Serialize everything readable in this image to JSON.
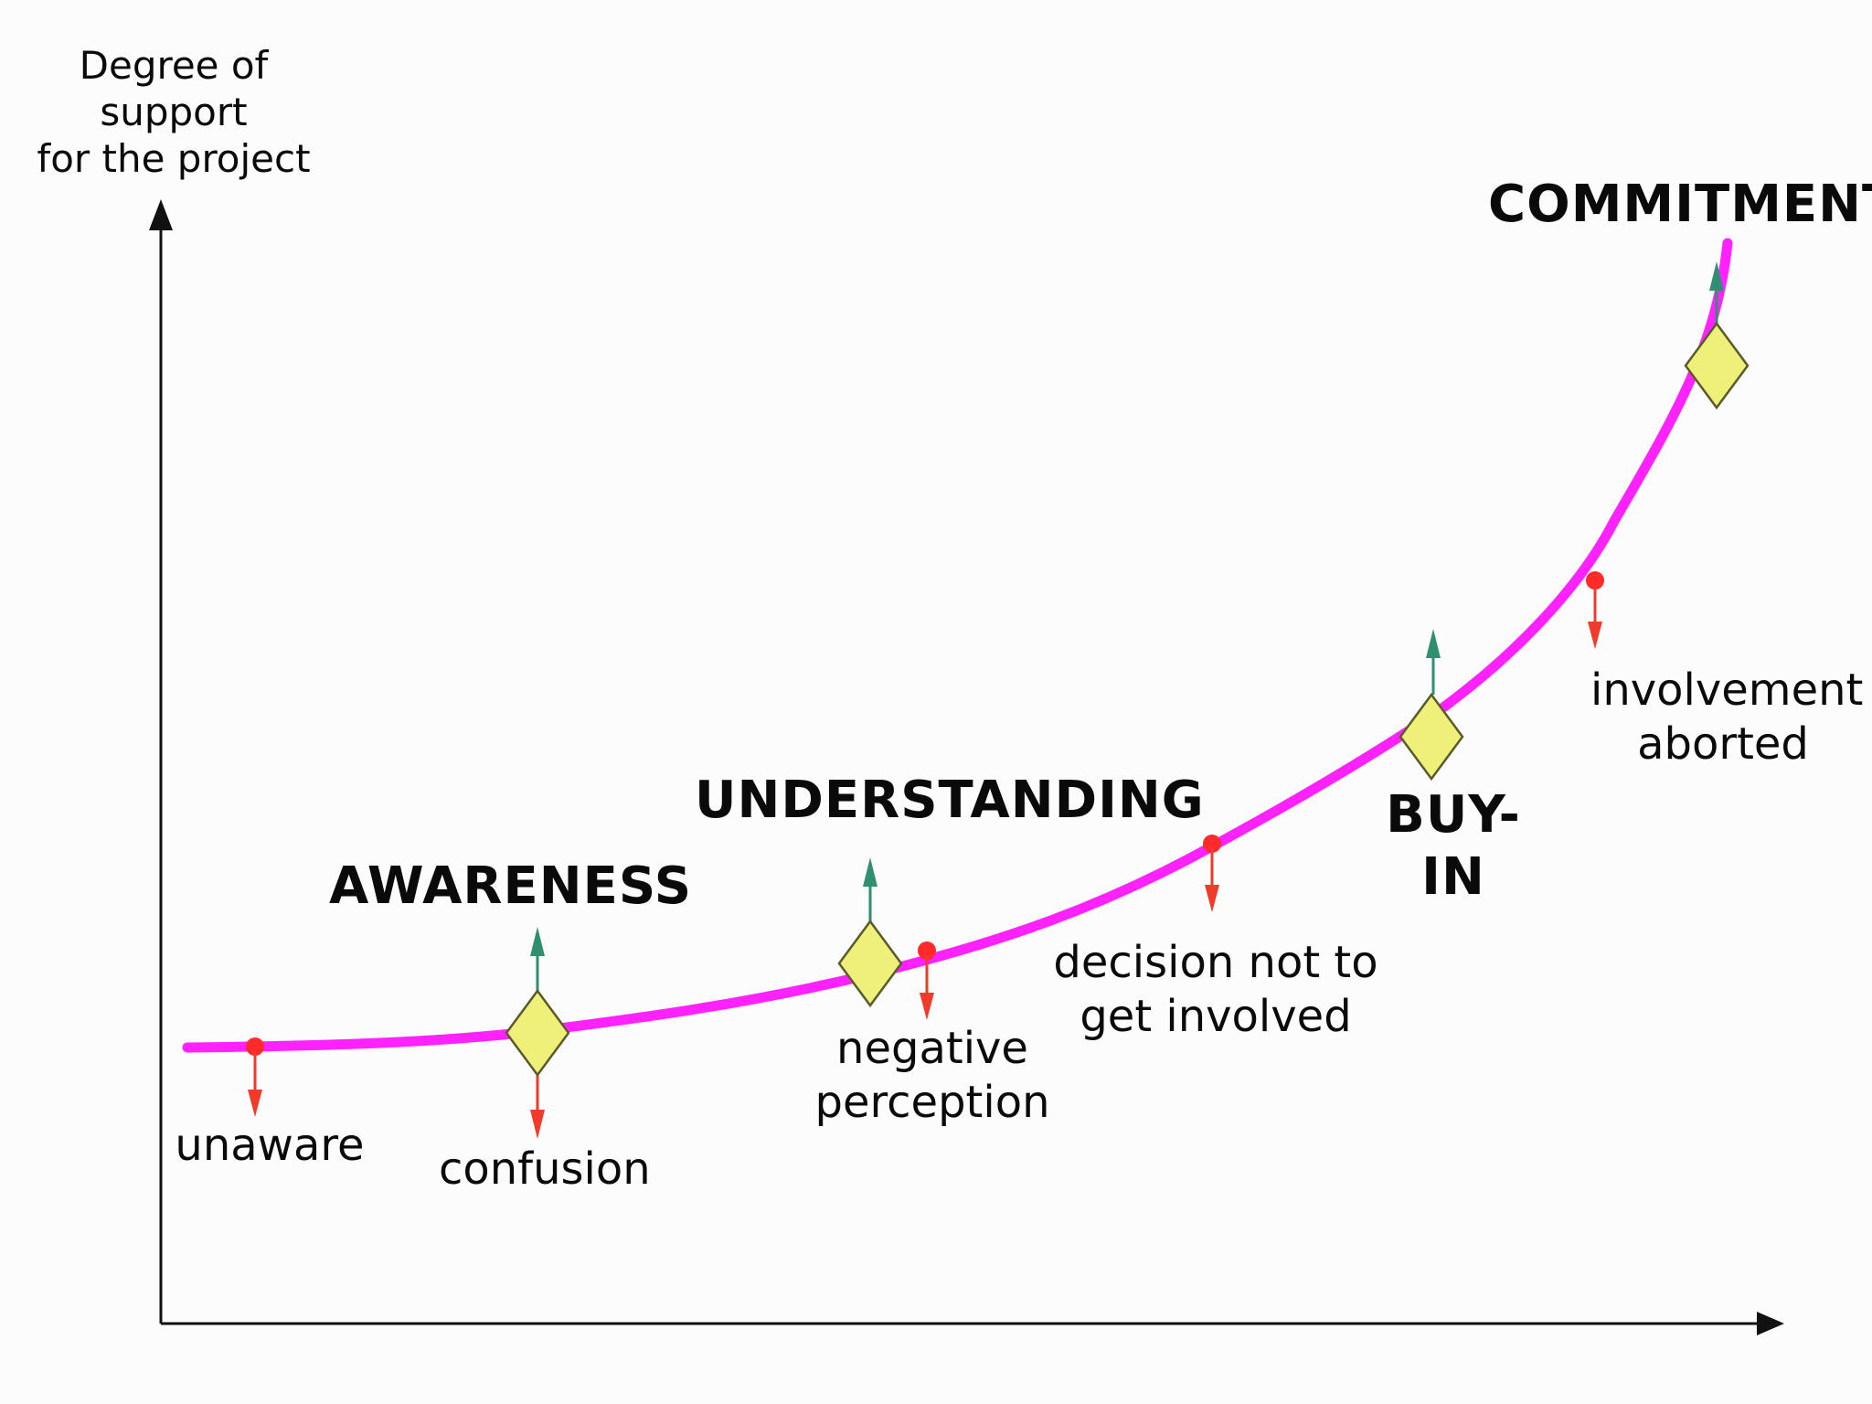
{
  "diagram": {
    "y_axis_label": "Degree of support\nfor the project",
    "colors": {
      "axis": "#111111",
      "curve": "#ff22ff",
      "milestone_fill": "#eef07a",
      "milestone_stroke": "#5a5a2a",
      "success_arrow": "#2f8f6f",
      "drop_arrow": "#f03a2a",
      "drop_point": "#ff2a2a"
    },
    "stages": [
      {
        "id": "awareness",
        "label": "AWARENESS"
      },
      {
        "id": "understanding",
        "label": "UNDERSTANDING"
      },
      {
        "id": "buy-in",
        "label": "BUY-IN"
      },
      {
        "id": "commitment",
        "label": "COMMITMENT"
      }
    ],
    "outcomes": [
      {
        "id": "unaware",
        "label": "unaware"
      },
      {
        "id": "confusion",
        "label": "confusion"
      },
      {
        "id": "negative-perception",
        "label": "negative\nperception"
      },
      {
        "id": "decision-not-to-get-involved",
        "label": "decision not to\nget involved"
      },
      {
        "id": "involvement-aborted",
        "label": "involvement\naborted"
      }
    ]
  }
}
